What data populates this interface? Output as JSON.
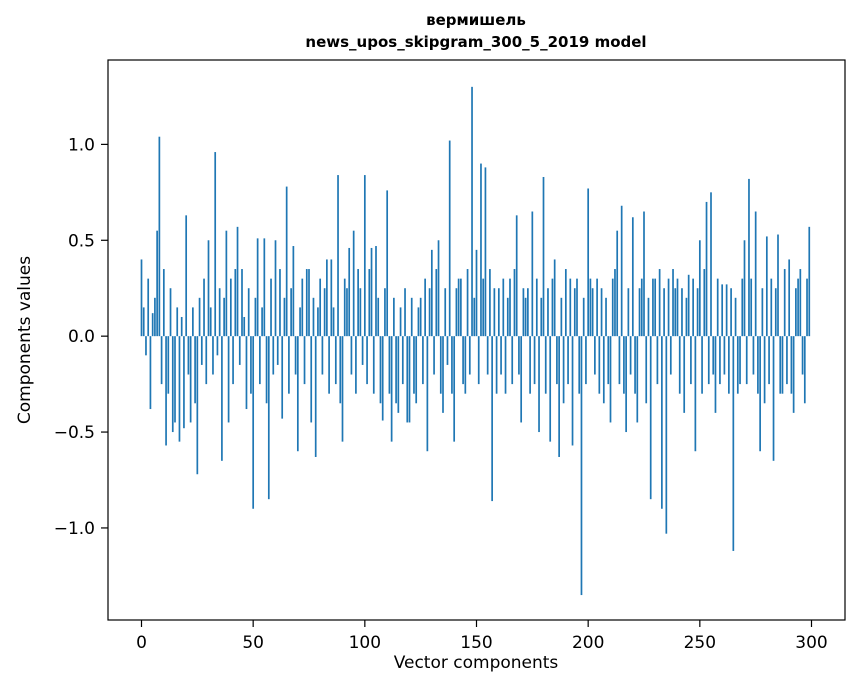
{
  "figure": {
    "title_line1": "вермишель",
    "title_line2": "news_upos_skipgram_300_5_2019 model",
    "xlabel": "Vector components",
    "ylabel": "Components values"
  },
  "chart_data": {
    "type": "bar",
    "title": "вермишель — news_upos_skipgram_300_5_2019 model",
    "xlabel": "Vector components",
    "ylabel": "Components values",
    "bar_color": "#1f77b4",
    "grid": false,
    "legend": "none",
    "xlim": [
      -15,
      315
    ],
    "ylim": [
      -1.48,
      1.44
    ],
    "x_ticks": [
      0,
      50,
      100,
      150,
      200,
      250,
      300
    ],
    "x_tick_labels": [
      "0",
      "50",
      "100",
      "150",
      "200",
      "250",
      "300"
    ],
    "y_ticks": [
      -1.0,
      -0.5,
      0.0,
      0.5,
      1.0
    ],
    "y_tick_labels": [
      "−1.0",
      "−0.5",
      "0.0",
      "0.5",
      "1.0"
    ],
    "n_components": 300,
    "values": [
      0.4,
      0.15,
      -0.1,
      0.3,
      -0.38,
      0.12,
      0.2,
      0.55,
      1.04,
      -0.25,
      0.35,
      -0.57,
      -0.3,
      0.25,
      -0.5,
      -0.45,
      0.15,
      -0.55,
      0.1,
      -0.48,
      0.63,
      -0.2,
      -0.45,
      0.15,
      -0.35,
      -0.72,
      0.2,
      -0.15,
      0.3,
      -0.25,
      0.5,
      0.15,
      -0.2,
      0.96,
      -0.1,
      0.25,
      -0.65,
      0.2,
      0.55,
      -0.45,
      0.3,
      -0.25,
      0.35,
      0.57,
      -0.15,
      0.35,
      0.1,
      -0.38,
      0.25,
      -0.3,
      -0.9,
      0.2,
      0.51,
      -0.25,
      0.15,
      0.51,
      -0.35,
      -0.85,
      0.3,
      -0.2,
      0.5,
      -0.15,
      0.35,
      -0.43,
      0.2,
      0.78,
      -0.3,
      0.25,
      0.47,
      -0.2,
      -0.6,
      0.15,
      0.3,
      -0.25,
      0.35,
      0.35,
      -0.45,
      0.2,
      -0.63,
      0.15,
      0.3,
      -0.2,
      0.25,
      0.4,
      -0.3,
      0.4,
      0.15,
      -0.25,
      0.84,
      -0.35,
      -0.55,
      0.3,
      0.25,
      0.46,
      -0.2,
      0.55,
      -0.3,
      0.35,
      0.25,
      -0.15,
      0.84,
      -0.25,
      0.35,
      0.46,
      -0.3,
      0.47,
      0.2,
      -0.35,
      -0.44,
      0.25,
      0.76,
      -0.3,
      -0.55,
      0.2,
      -0.35,
      -0.4,
      0.15,
      -0.25,
      0.25,
      -0.45,
      -0.45,
      0.2,
      -0.3,
      -0.35,
      0.15,
      0.2,
      -0.25,
      0.3,
      -0.6,
      0.25,
      0.45,
      -0.2,
      0.35,
      0.5,
      -0.3,
      -0.4,
      0.25,
      -0.15,
      1.02,
      -0.3,
      -0.55,
      0.25,
      0.3,
      0.3,
      -0.25,
      -0.3,
      0.35,
      -0.2,
      1.3,
      0.2,
      0.45,
      -0.25,
      0.9,
      0.3,
      0.88,
      -0.2,
      0.35,
      -0.86,
      0.25,
      -0.3,
      0.25,
      -0.2,
      0.3,
      -0.3,
      0.2,
      0.3,
      -0.25,
      0.35,
      0.63,
      -0.2,
      -0.45,
      0.25,
      0.2,
      0.25,
      -0.3,
      0.65,
      -0.25,
      0.3,
      -0.5,
      0.2,
      0.83,
      -0.3,
      0.25,
      -0.55,
      0.3,
      0.4,
      -0.25,
      -0.63,
      0.2,
      -0.35,
      0.35,
      -0.25,
      0.3,
      -0.57,
      0.25,
      0.3,
      -0.3,
      -1.35,
      0.2,
      -0.25,
      0.77,
      0.3,
      0.25,
      -0.2,
      0.3,
      -0.3,
      0.25,
      -0.35,
      0.2,
      -0.25,
      -0.45,
      0.3,
      0.35,
      0.55,
      -0.25,
      0.68,
      -0.3,
      -0.5,
      0.25,
      -0.2,
      0.62,
      -0.3,
      -0.45,
      0.25,
      0.3,
      0.65,
      -0.35,
      0.2,
      -0.85,
      0.3,
      0.3,
      -0.25,
      0.35,
      -0.9,
      0.25,
      -1.03,
      0.3,
      -0.2,
      0.35,
      0.25,
      0.3,
      -0.3,
      0.25,
      -0.4,
      0.2,
      0.32,
      -0.25,
      0.3,
      -0.6,
      0.25,
      0.5,
      -0.3,
      0.35,
      0.7,
      -0.25,
      0.75,
      -0.2,
      -0.4,
      0.3,
      -0.25,
      0.27,
      -0.2,
      0.27,
      -0.3,
      0.25,
      -1.12,
      0.2,
      -0.3,
      -0.25,
      0.3,
      0.5,
      -0.25,
      0.82,
      0.3,
      -0.2,
      0.65,
      -0.3,
      -0.6,
      0.25,
      -0.35,
      0.52,
      -0.25,
      0.3,
      -0.65,
      0.25,
      0.53,
      -0.3,
      -0.3,
      0.35,
      -0.25,
      0.4,
      -0.3,
      -0.4,
      0.25,
      0.3,
      0.35,
      -0.2,
      -0.35,
      0.3,
      0.57
    ]
  }
}
